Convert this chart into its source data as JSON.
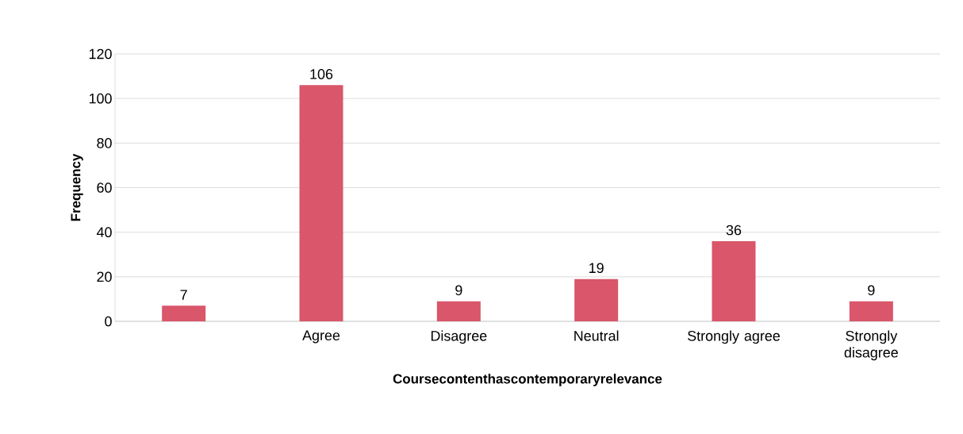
{
  "chart_data": {
    "type": "bar",
    "xlabel": "Coursecontenthascontemporaryrelevance",
    "ylabel": "Frequency",
    "categories": [
      null,
      "Agree",
      "Disagree",
      "Neutral",
      "Strongly agree",
      "Strongly disagree"
    ],
    "values": [
      7,
      106,
      9,
      19,
      36,
      9
    ],
    "color": "#d9566b",
    "ylim": [
      0,
      120
    ],
    "yticks": [
      0,
      20,
      40,
      60,
      80,
      100,
      120
    ],
    "grid": "y",
    "data_labels": true
  }
}
